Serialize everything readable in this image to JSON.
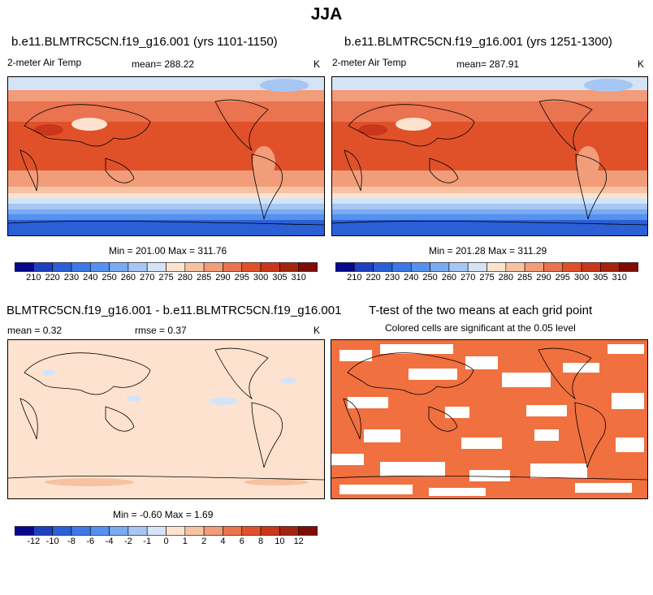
{
  "figure": {
    "title": "JJA"
  },
  "panel_a": {
    "title": "b.e11.BLMTRC5CN.f19_g16.001 (yrs 1101-1150)",
    "variable": "2-meter Air Temp",
    "mean": "mean= 288.22",
    "units": "K",
    "minmax": "Min = 201.00 Max = 311.76"
  },
  "panel_b": {
    "title": "b.e11.BLMTRC5CN.f19_g16.001 (yrs 1251-1300)",
    "variable": "2-meter Air Temp",
    "mean": "mean= 287.91",
    "units": "K",
    "minmax": "Min = 201.28 Max = 311.29"
  },
  "panel_c": {
    "title": "BLMTRC5CN.f19_g16.001 - b.e11.BLMTRC5CN.f19_g16.001",
    "mean": "mean =   0.32",
    "rmse": "rmse =   0.37",
    "units": "K",
    "minmax": "Min =  -0.60 Max =   1.69"
  },
  "panel_d": {
    "title": "T-test of the two means at each grid point",
    "subtitle": "Colored cells are significant at the 0.05 level"
  },
  "colorbar_temp": {
    "labels": [
      "210",
      "220",
      "230",
      "240",
      "250",
      "260",
      "270",
      "275",
      "280",
      "285",
      "290",
      "295",
      "300",
      "305",
      "310"
    ],
    "colors": [
      "#08088a",
      "#1f3fbf",
      "#2b5fd6",
      "#3d79e6",
      "#5591ee",
      "#7aaaf2",
      "#a6c6f4",
      "#d4e4f6",
      "#fde3cf",
      "#f7c2a2",
      "#f19d79",
      "#ea7350",
      "#e0512a",
      "#c9361b",
      "#a42410",
      "#7f0d05"
    ]
  },
  "colorbar_diff": {
    "labels": [
      "-12",
      "-10",
      "-8",
      "-6",
      "-4",
      "-2",
      "-1",
      "0",
      "1",
      "2",
      "4",
      "6",
      "8",
      "10",
      "12"
    ],
    "colors": [
      "#08088a",
      "#1f3fbf",
      "#2b5fd6",
      "#3d79e6",
      "#5591ee",
      "#7aaaf2",
      "#a6c6f4",
      "#d4e4f6",
      "#fde3cf",
      "#f7c2a2",
      "#f19d79",
      "#ea7350",
      "#e0512a",
      "#c9361b",
      "#a42410",
      "#7f0d05"
    ]
  },
  "colors": {
    "significant": "#f07040",
    "diff_base": "#fde3cf"
  }
}
